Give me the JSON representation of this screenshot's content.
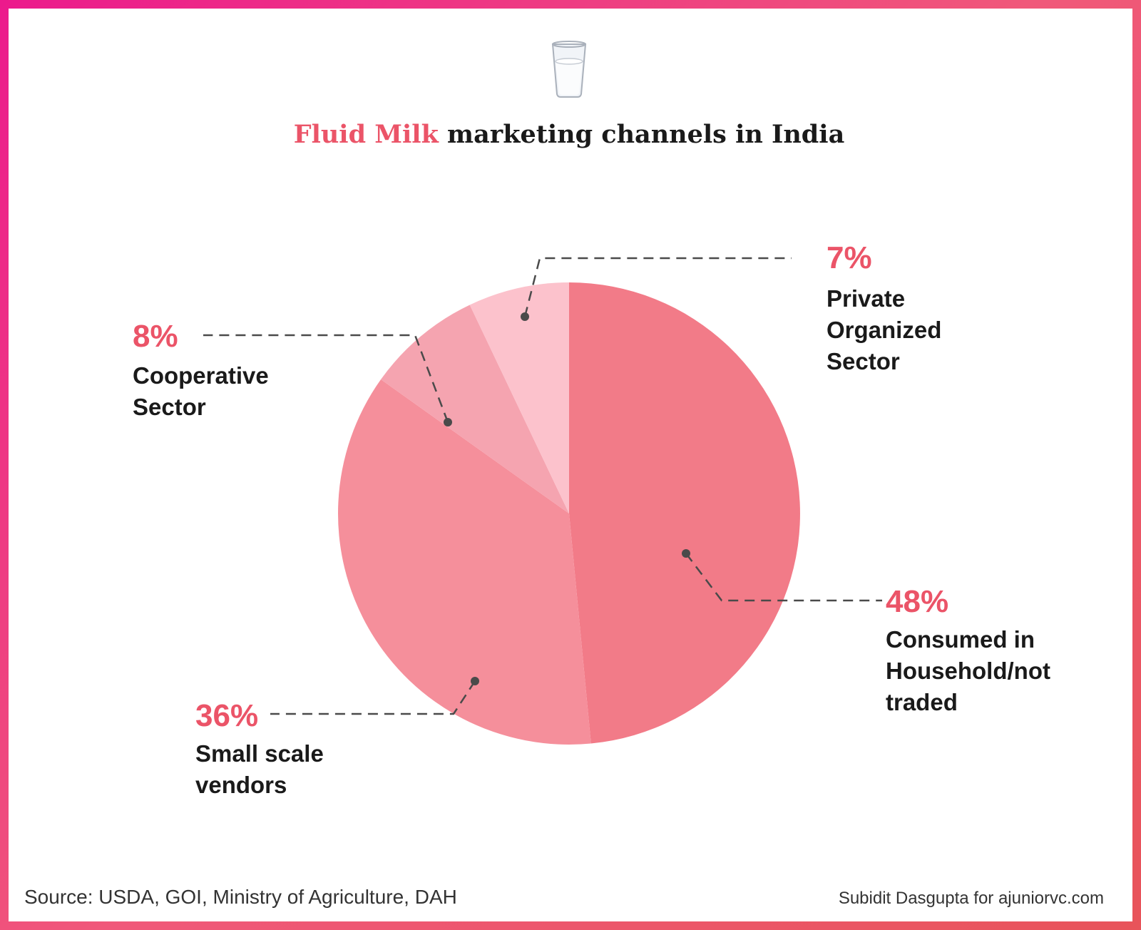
{
  "title": {
    "highlight": "Fluid Milk",
    "rest": " marketing channels in India",
    "icon": "milk-glass-icon"
  },
  "chart_data": {
    "type": "pie",
    "title": "Fluid Milk marketing channels in India",
    "start_angle_deg": 0,
    "direction": "clockwise",
    "slices": [
      {
        "label": "Consumed in Household/not traded",
        "label_lines": [
          "Consumed in",
          "Household/not",
          "traded"
        ],
        "value": 48,
        "display": "48%",
        "color": "#f27b88"
      },
      {
        "label": "Small scale vendors",
        "label_lines": [
          "Small scale",
          "vendors"
        ],
        "value": 36,
        "display": "36%",
        "color": "#f58f9b"
      },
      {
        "label": "Cooperative Sector",
        "label_lines": [
          "Cooperative",
          "Sector"
        ],
        "value": 8,
        "display": "8%",
        "color": "#f5a4b0"
      },
      {
        "label": "Private Organized Sector",
        "label_lines": [
          "Private",
          "Organized",
          "Sector"
        ],
        "value": 7,
        "display": "7%",
        "color": "#fcc2cc"
      }
    ]
  },
  "colors": {
    "accent": "#eb5468",
    "text": "#1a1a1a",
    "leader": "#4a4a4a"
  },
  "footer": {
    "source": "Source: USDA, GOI, Ministry of Agriculture, DAH",
    "credit": "Subidit Dasgupta for ajuniorvc.com"
  }
}
